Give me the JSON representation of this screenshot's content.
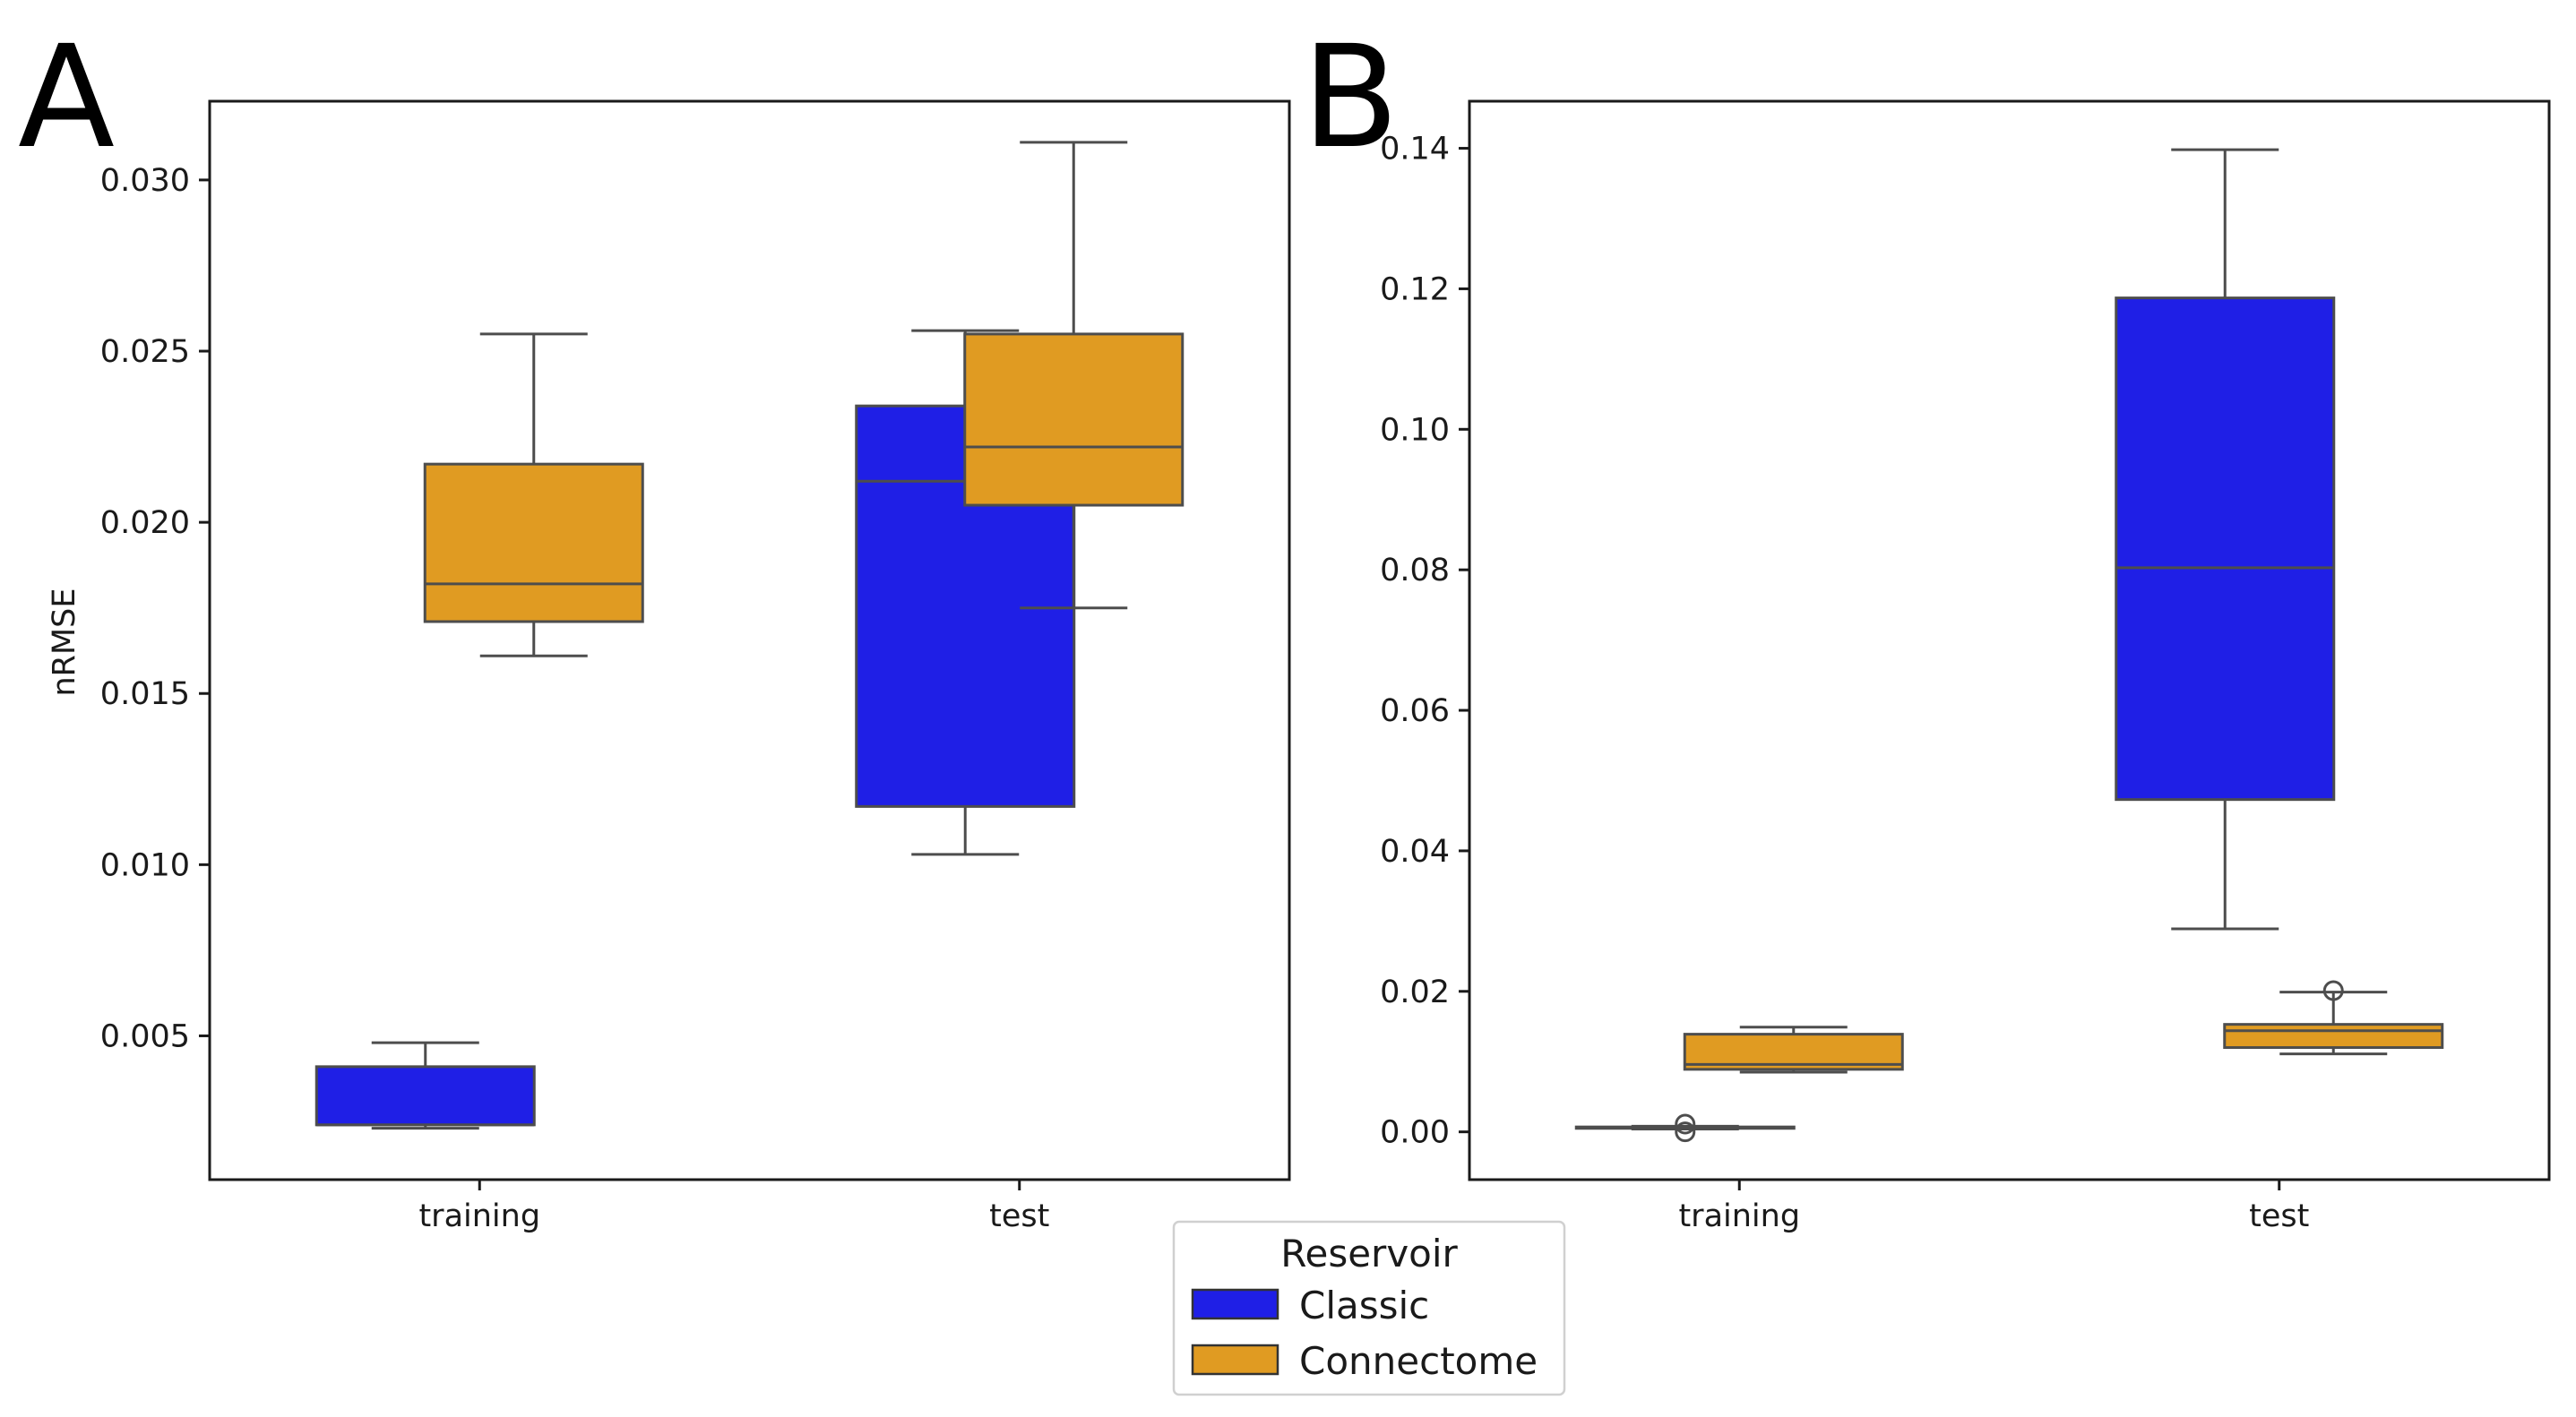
{
  "legend": {
    "title": "Reservoir",
    "entries": [
      {
        "label": "Classic",
        "color": "#1f1fe6"
      },
      {
        "label": "Connectome",
        "color": "#e09b22"
      }
    ]
  },
  "chart_data": [
    {
      "panel": "A",
      "type": "box",
      "title": "",
      "xlabel": "",
      "ylabel": "nRMSE",
      "ylim": [
        0.0008,
        0.0323
      ],
      "yticks": [
        0.005,
        0.01,
        0.015,
        0.02,
        0.025,
        0.03
      ],
      "ytick_labels": [
        "0.005",
        "0.010",
        "0.015",
        "0.020",
        "0.025",
        "0.030"
      ],
      "categories": [
        "training",
        "test"
      ],
      "series": [
        {
          "name": "Classic",
          "color": "#1f1fe6",
          "boxes": [
            {
              "category": "training",
              "whislo": 0.0023,
              "q1": 0.0024,
              "med": 0.0024,
              "q3": 0.0041,
              "whishi": 0.0048,
              "fliers": []
            },
            {
              "category": "test",
              "whislo": 0.0103,
              "q1": 0.0117,
              "med": 0.0212,
              "q3": 0.0234,
              "whishi": 0.0256,
              "fliers": []
            }
          ]
        },
        {
          "name": "Connectome",
          "color": "#e09b22",
          "boxes": [
            {
              "category": "training",
              "whislo": 0.0161,
              "q1": 0.0171,
              "med": 0.0182,
              "q3": 0.0217,
              "whishi": 0.0255,
              "fliers": []
            },
            {
              "category": "test",
              "whislo": 0.0175,
              "q1": 0.0205,
              "med": 0.0222,
              "q3": 0.0255,
              "whishi": 0.0311,
              "fliers": []
            }
          ]
        }
      ]
    },
    {
      "panel": "B",
      "type": "box",
      "title": "",
      "xlabel": "",
      "ylabel": "",
      "ylim": [
        -0.0068,
        0.1467
      ],
      "yticks": [
        0.0,
        0.02,
        0.04,
        0.06,
        0.08,
        0.1,
        0.12,
        0.14
      ],
      "ytick_labels": [
        "0.00",
        "0.02",
        "0.04",
        "0.06",
        "0.08",
        "0.10",
        "0.12",
        "0.14"
      ],
      "categories": [
        "training",
        "test"
      ],
      "series": [
        {
          "name": "Classic",
          "color": "#1f1fe6",
          "boxes": [
            {
              "category": "training",
              "whislo": 0.0004,
              "q1": 0.0005,
              "med": 0.0006,
              "q3": 0.0007,
              "whishi": 0.0008,
              "fliers": [
                0.0,
                0.0011
              ]
            },
            {
              "category": "test",
              "whislo": 0.0289,
              "q1": 0.0473,
              "med": 0.0803,
              "q3": 0.1187,
              "whishi": 0.1398,
              "fliers": []
            }
          ]
        },
        {
          "name": "Connectome",
          "color": "#e09b22",
          "boxes": [
            {
              "category": "training",
              "whislo": 0.0085,
              "q1": 0.0089,
              "med": 0.0096,
              "q3": 0.0139,
              "whishi": 0.0149,
              "fliers": []
            },
            {
              "category": "test",
              "whislo": 0.0111,
              "q1": 0.012,
              "med": 0.0144,
              "q3": 0.0153,
              "whishi": 0.0199,
              "fliers": [
                0.0201
              ]
            }
          ]
        }
      ]
    }
  ]
}
